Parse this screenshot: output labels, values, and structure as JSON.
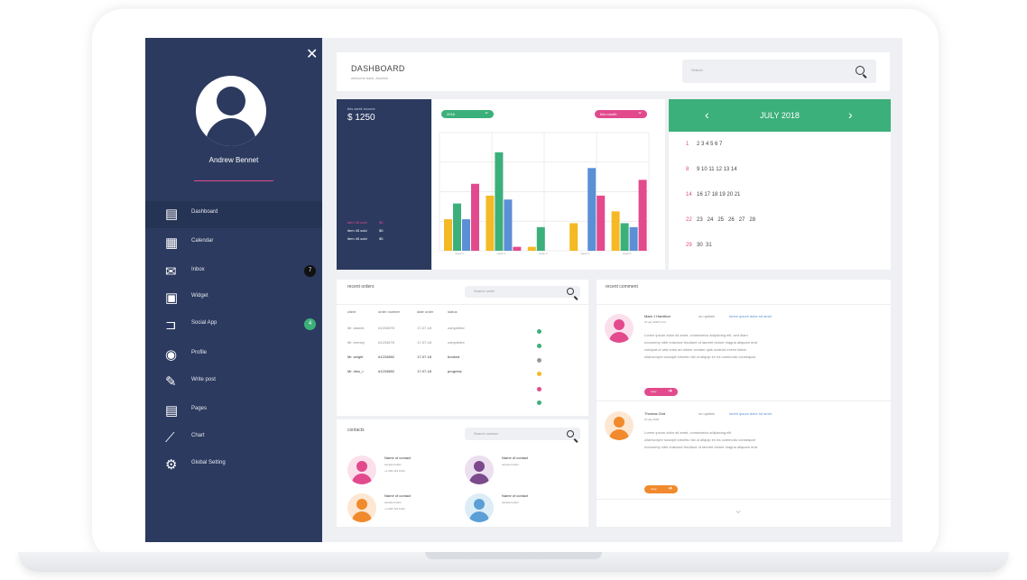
{
  "sidebar": {
    "user_name": "Andrew Bennet",
    "items": [
      {
        "label": "Dashboard",
        "icon": "dashboard-icon",
        "glyph": "▤",
        "active": true
      },
      {
        "label": "Calendar",
        "icon": "calendar-icon",
        "glyph": "▦"
      },
      {
        "label": "Inbox",
        "icon": "mail-icon",
        "glyph": "✉",
        "badge": "7",
        "badge_color": "#111111"
      },
      {
        "label": "Widget",
        "icon": "widget-icon",
        "glyph": "▣"
      },
      {
        "label": "Social App",
        "icon": "tag-icon",
        "glyph": "⊐",
        "badge": "4",
        "badge_color": "#3cb07a"
      },
      {
        "label": "Profile",
        "icon": "profile-icon",
        "glyph": "◉"
      },
      {
        "label": "Write post",
        "icon": "pencil-icon",
        "glyph": "✎"
      },
      {
        "label": "Pages",
        "icon": "pages-icon",
        "glyph": "▤"
      },
      {
        "label": "Chart",
        "icon": "chart-icon",
        "glyph": "⟋"
      },
      {
        "label": "Global Setting",
        "icon": "gear-icon",
        "glyph": "⚙"
      }
    ]
  },
  "header": {
    "title": "DASHBOARD",
    "subtitle": "welcome back, Andrew",
    "search_placeholder": "Search"
  },
  "income": {
    "label": "this week income",
    "value": "$ 1250",
    "rows": [
      {
        "name": "item 45 sold",
        "value": "$5",
        "color": "#e24a8d"
      },
      {
        "name": "item 45 sold",
        "value": "$5",
        "color": "#ffffff"
      },
      {
        "name": "item 45 sold",
        "value": "$5",
        "color": "#ffffff"
      }
    ]
  },
  "chart_controls": {
    "left_select": "2018",
    "right_select": "this month"
  },
  "chart_data": {
    "type": "bar",
    "categories": [
      "week 1",
      "week 2",
      "week 3",
      "week 4",
      "week 5"
    ],
    "series": [
      {
        "color": "#f5b925",
        "values": [
          8,
          14,
          1,
          7,
          10
        ]
      },
      {
        "color": "#3cb07a",
        "values": [
          12,
          25,
          6,
          0,
          7
        ]
      },
      {
        "color": "#5b8fd6",
        "values": [
          8,
          13,
          0,
          21,
          6
        ]
      },
      {
        "color": "#e24a8d",
        "values": [
          17,
          1,
          0,
          14,
          18
        ]
      }
    ],
    "ylim": [
      0,
      30
    ]
  },
  "calendar": {
    "month": "JULY 2018",
    "rows": [
      [
        "1",
        "2 3 4 5 6 7"
      ],
      [
        "8",
        "9 10 11 12 13 14"
      ],
      [
        "14",
        "16 17 18 19 20 21"
      ],
      [
        "22",
        "23   24   25   26   27   28"
      ],
      [
        "29",
        "30  31"
      ]
    ]
  },
  "orders": {
    "title": "recent orders",
    "search_placeholder": "Search order",
    "columns": [
      "client",
      "order number",
      "date order",
      "status"
    ],
    "rows": [
      {
        "client": "Mr. alanek",
        "order": "#1234578",
        "date": "17-07-18",
        "status": "completed",
        "dot": "#3cb07a"
      },
      {
        "client": "Mr. brenny",
        "order": "#1234578",
        "date": "17-07-18",
        "status": "completed",
        "dot": "#3cb07a"
      },
      {
        "client": "Mr. wright",
        "order": "#1234580",
        "date": "17-07-18",
        "status": "booked",
        "dot": "#999999"
      },
      {
        "client": "Mr. dino_r",
        "order": "#1234580",
        "date": "17-07-18",
        "status": "progress",
        "dot": "#f5b925"
      }
    ],
    "extra_dots": [
      "#e24a8d",
      "#3cb07a"
    ]
  },
  "contacts": {
    "title": "contacts",
    "search_placeholder": "Search contact",
    "items": [
      {
        "name": "Name of contact",
        "sub": "sample button",
        "phone": "+1 000 123 1234",
        "bg": "#fbe0ec",
        "fg": "#e24a8d"
      },
      {
        "name": "Name of contact",
        "sub": "sample button",
        "phone": "",
        "bg": "#ecdff0",
        "fg": "#7c4a8c"
      },
      {
        "name": "Name of contact",
        "sub": "sample button",
        "phone": "+1 000 123 1234",
        "bg": "#fde7d2",
        "fg": "#f08a2c"
      },
      {
        "name": "Name of contact",
        "sub": "sample button",
        "phone": "",
        "bg": "#dcedf7",
        "fg": "#5b9fd6"
      }
    ]
  },
  "comments": {
    "title": "recent comment",
    "items": [
      {
        "name": "Mark J Hamilton",
        "action": "on update",
        "link": "lorem ipsum dolor sit amet",
        "time": "10 july 2018 11:11",
        "lines": [
          "Lorem ipsum dolor sit amet, consectetur adipiscing elit, sed diam",
          "nonummy nibh euismod tincidunt ut laoreet dolore magna aliquam erat",
          "volutpat ut wisi enim ad minim veniam quis nostrud exerci tation",
          "ullamcorper suscipit lobortis nisl ut aliquip ex ea commodo consequat."
        ],
        "btn": "reply",
        "btn_color": "#e24a8d",
        "bg": "#fbe0ec",
        "fg": "#e24a8d"
      },
      {
        "name": "Thomas Grid",
        "action": "on update",
        "link": "lorem ipsum dolor sit amet",
        "time": "10 july 2018",
        "lines": [
          "Lorem ipsum dolor sit amet, consectetur adipiscing elit",
          "ullamcorper suscipit lobortis nisl ut aliquip ex ea commodo consequat",
          "nonummy nibh euismod tincidunt ut laoreet dolore magna aliquam erat"
        ],
        "btn": "reply",
        "btn_color": "#f08a2c",
        "bg": "#fde7d2",
        "fg": "#f08a2c"
      }
    ]
  }
}
